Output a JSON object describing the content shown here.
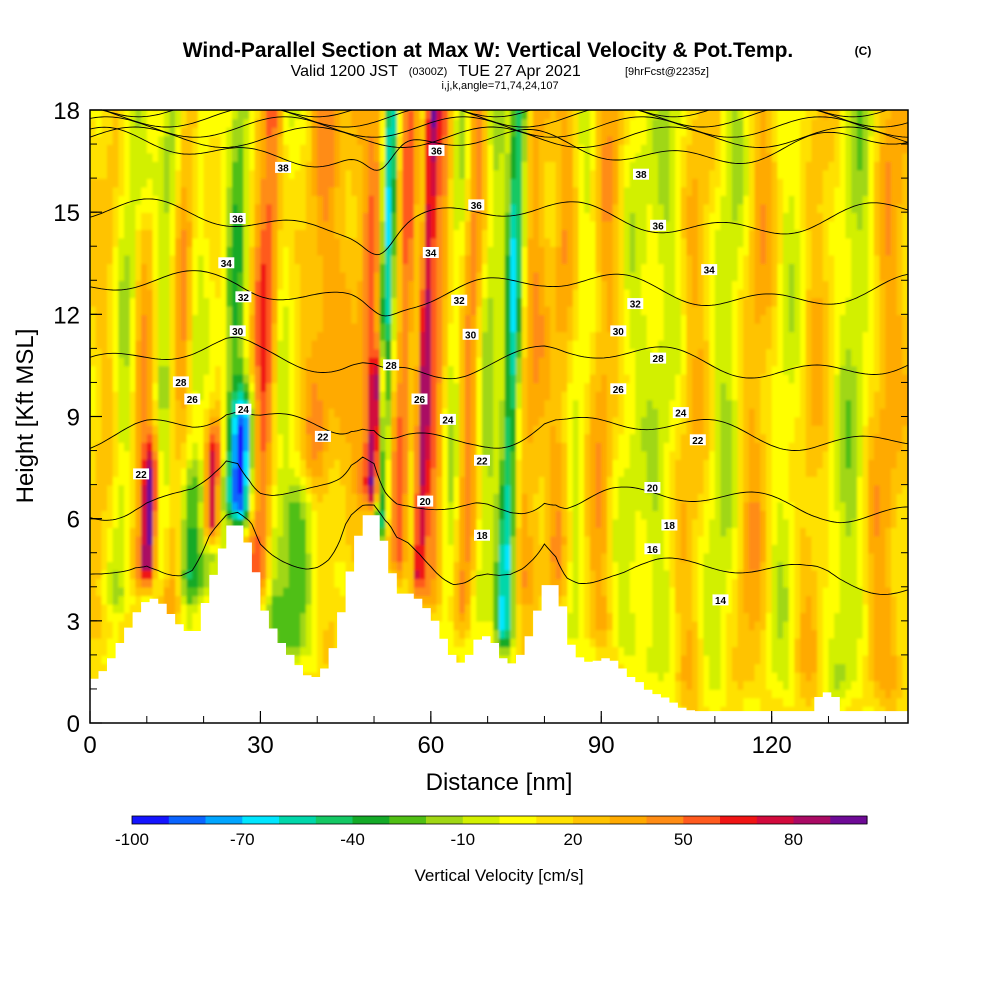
{
  "title": {
    "main": "Wind-Parallel Section at Max W: Vertical Velocity & Pot.Temp.",
    "copyright": "(C)",
    "valid_prefix": "Valid 1200 JST",
    "valid_zulu": "(0300Z)",
    "valid_date": "TUE 27 Apr 2021",
    "forecast": "[9hrFcst@2235z]",
    "indices": "i,j,k,angle=71,74,24,107"
  },
  "chart_data": {
    "type": "heatmap",
    "xlabel": "Distance [nm]",
    "ylabel": "Height [Kft MSL]",
    "xlim": [
      0,
      144
    ],
    "ylim": [
      0,
      18
    ],
    "x_ticks": [
      0,
      30,
      60,
      90,
      120
    ],
    "y_ticks": [
      0,
      3,
      6,
      9,
      12,
      15,
      18
    ],
    "colorbar": {
      "label": "Vertical Velocity [cm/s]",
      "tick_labels": [
        "-100",
        "-70",
        "-40",
        "-10",
        "20",
        "50",
        "80"
      ],
      "tick_values": [
        -100,
        -70,
        -40,
        -10,
        20,
        50,
        80
      ],
      "range": [
        -100,
        100
      ],
      "colors": [
        "#1414ff",
        "#0a64ff",
        "#00a5ff",
        "#00e6ff",
        "#00d7aa",
        "#14c864",
        "#14aa28",
        "#50bf14",
        "#a0d714",
        "#d2f000",
        "#ffff00",
        "#ffe100",
        "#ffc300",
        "#ffaa00",
        "#ff8c14",
        "#ff5a1e",
        "#f01414",
        "#d20a3c",
        "#aa0a64",
        "#6e0a96"
      ]
    },
    "terrain_kft": {
      "x": [
        0,
        2,
        4,
        6,
        8,
        10,
        12,
        14,
        16,
        18,
        20,
        22,
        24,
        26,
        28,
        30,
        32,
        34,
        36,
        38,
        40,
        42,
        44,
        46,
        48,
        50,
        52,
        54,
        56,
        58,
        60,
        62,
        64,
        66,
        68,
        70,
        72,
        74,
        76,
        78,
        80,
        82,
        84,
        86,
        88,
        90,
        92,
        94,
        96,
        98,
        100,
        102,
        104,
        106,
        108,
        110,
        112,
        114,
        116,
        118,
        120,
        122,
        124,
        126,
        128,
        130,
        132,
        134,
        136,
        138,
        140,
        142,
        144
      ],
      "y": [
        1.3,
        1.6,
        2.2,
        2.8,
        3.4,
        3.7,
        3.5,
        3.1,
        2.7,
        2.7,
        3.8,
        4.9,
        5.8,
        5.8,
        4.8,
        3.3,
        2.6,
        2.1,
        1.7,
        1.3,
        1.4,
        2.2,
        3.6,
        5.3,
        6.1,
        6.1,
        4.6,
        3.8,
        3.8,
        3.5,
        3.0,
        2.3,
        1.7,
        2.0,
        2.6,
        2.5,
        1.9,
        1.7,
        2.3,
        3.3,
        4.3,
        3.8,
        2.3,
        1.8,
        1.8,
        1.9,
        1.8,
        1.4,
        1.2,
        0.9,
        0.8,
        0.6,
        0.4,
        0.35,
        0.35,
        0.35,
        0.35,
        0.35,
        0.35,
        0.35,
        0.35,
        0.35,
        0.35,
        0.35,
        0.9,
        0.9,
        0.35,
        0.35,
        0.35,
        0.35,
        0.35,
        0.35,
        0.35
      ]
    },
    "vertical_velocity_features": [
      {
        "x": 3,
        "top": 18,
        "w": 3.0,
        "value": 15
      },
      {
        "x": 6,
        "top": 18,
        "w": 2.5,
        "value": -30
      },
      {
        "x": 9,
        "top": 14,
        "w": 2.5,
        "value": 30
      },
      {
        "x": 11,
        "top": 7.0,
        "w": 1.5,
        "value": 90
      },
      {
        "x": 13,
        "top": 18,
        "w": 2.5,
        "value": -35
      },
      {
        "x": 15.5,
        "top": 18,
        "w": 2.5,
        "value": 40
      },
      {
        "x": 18,
        "top": 18,
        "w": 2.0,
        "value": -20
      },
      {
        "x": 19,
        "top": 6.5,
        "w": 4.0,
        "value": -40
      },
      {
        "x": 22,
        "top": 7.5,
        "w": 1.5,
        "value": 85
      },
      {
        "x": 25,
        "top": 18,
        "w": 2.0,
        "value": -40
      },
      {
        "x": 27,
        "top": 8.5,
        "w": 2.0,
        "value": -95
      },
      {
        "x": 30.5,
        "top": 18,
        "w": 2.5,
        "value": 50
      },
      {
        "x": 33,
        "top": 18,
        "w": 2.0,
        "value": -20
      },
      {
        "x": 37.5,
        "top": 6.0,
        "w": 4.5,
        "value": -45
      },
      {
        "x": 40,
        "top": 18,
        "w": 3.0,
        "value": 25
      },
      {
        "x": 45,
        "top": 18,
        "w": 3.0,
        "value": 15
      },
      {
        "x": 49,
        "top": 18,
        "w": 2.0,
        "value": 35
      },
      {
        "x": 50.5,
        "top": 9.8,
        "w": 1.3,
        "value": 95
      },
      {
        "x": 51.5,
        "top": 18,
        "w": 1.4,
        "value": -80
      },
      {
        "x": 55,
        "top": 18,
        "w": 2.0,
        "value": 40
      },
      {
        "x": 57.5,
        "top": 18,
        "w": 1.5,
        "value": -30
      },
      {
        "x": 58.5,
        "top": 18,
        "w": 1.4,
        "value": 80
      },
      {
        "x": 61,
        "top": 18,
        "w": 2.0,
        "value": 35
      },
      {
        "x": 64,
        "top": 18,
        "w": 2.5,
        "value": -25
      },
      {
        "x": 66.5,
        "top": 18,
        "w": 2.0,
        "value": 40
      },
      {
        "x": 70,
        "top": 18,
        "w": 2.0,
        "value": -25
      },
      {
        "x": 74,
        "top": 18,
        "w": 1.6,
        "value": -70
      },
      {
        "x": 77.5,
        "top": 18,
        "w": 2.5,
        "value": 25
      },
      {
        "x": 83,
        "top": 18,
        "w": 2.5,
        "value": 25
      },
      {
        "x": 86,
        "top": 18,
        "w": 2.5,
        "value": -20
      },
      {
        "x": 90,
        "top": 18,
        "w": 3.0,
        "value": 25
      },
      {
        "x": 95,
        "top": 18,
        "w": 3.0,
        "value": -15
      },
      {
        "x": 101,
        "top": 18,
        "w": 3.5,
        "value": -20
      },
      {
        "x": 106,
        "top": 18,
        "w": 3.5,
        "value": 20
      },
      {
        "x": 112,
        "top": 18,
        "w": 3.5,
        "value": -25
      },
      {
        "x": 117,
        "top": 18,
        "w": 3.5,
        "value": 25
      },
      {
        "x": 123,
        "top": 18,
        "w": 3.5,
        "value": -20
      },
      {
        "x": 127,
        "top": 18,
        "w": 3.5,
        "value": 20
      },
      {
        "x": 134,
        "top": 18,
        "w": 3.5,
        "value": -25
      },
      {
        "x": 140,
        "top": 18,
        "w": 3.5,
        "value": 25
      }
    ],
    "theta_levels": [
      14,
      16,
      18,
      20,
      22,
      24,
      26,
      28,
      30,
      32,
      34,
      36,
      38
    ],
    "contour_labels": [
      {
        "text": "38",
        "x": 34,
        "y": 16.3
      },
      {
        "text": "36",
        "x": 26,
        "y": 14.8
      },
      {
        "text": "34",
        "x": 24,
        "y": 13.5
      },
      {
        "text": "32",
        "x": 27,
        "y": 12.5
      },
      {
        "text": "30",
        "x": 26,
        "y": 11.5
      },
      {
        "text": "28",
        "x": 16,
        "y": 10.0
      },
      {
        "text": "26",
        "x": 18,
        "y": 9.5
      },
      {
        "text": "24",
        "x": 27,
        "y": 9.2
      },
      {
        "text": "22",
        "x": 9,
        "y": 7.3
      },
      {
        "text": "22",
        "x": 41,
        "y": 8.4
      },
      {
        "text": "36",
        "x": 61,
        "y": 16.8
      },
      {
        "text": "36",
        "x": 68,
        "y": 15.2
      },
      {
        "text": "34",
        "x": 60,
        "y": 13.8
      },
      {
        "text": "32",
        "x": 65,
        "y": 12.4
      },
      {
        "text": "30",
        "x": 67,
        "y": 11.4
      },
      {
        "text": "28",
        "x": 53,
        "y": 10.5
      },
      {
        "text": "26",
        "x": 58,
        "y": 9.5
      },
      {
        "text": "24",
        "x": 63,
        "y": 8.9
      },
      {
        "text": "22",
        "x": 69,
        "y": 7.7
      },
      {
        "text": "20",
        "x": 59,
        "y": 6.5
      },
      {
        "text": "18",
        "x": 69,
        "y": 5.5
      },
      {
        "text": "38",
        "x": 97,
        "y": 16.1
      },
      {
        "text": "36",
        "x": 100,
        "y": 14.6
      },
      {
        "text": "34",
        "x": 109,
        "y": 13.3
      },
      {
        "text": "32",
        "x": 96,
        "y": 12.3
      },
      {
        "text": "30",
        "x": 93,
        "y": 11.5
      },
      {
        "text": "28",
        "x": 100,
        "y": 10.7
      },
      {
        "text": "26",
        "x": 93,
        "y": 9.8
      },
      {
        "text": "24",
        "x": 104,
        "y": 9.1
      },
      {
        "text": "22",
        "x": 107,
        "y": 8.3
      },
      {
        "text": "20",
        "x": 99,
        "y": 6.9
      },
      {
        "text": "18",
        "x": 102,
        "y": 5.8
      },
      {
        "text": "16",
        "x": 99,
        "y": 5.1
      },
      {
        "text": "14",
        "x": 111,
        "y": 3.6
      }
    ]
  }
}
